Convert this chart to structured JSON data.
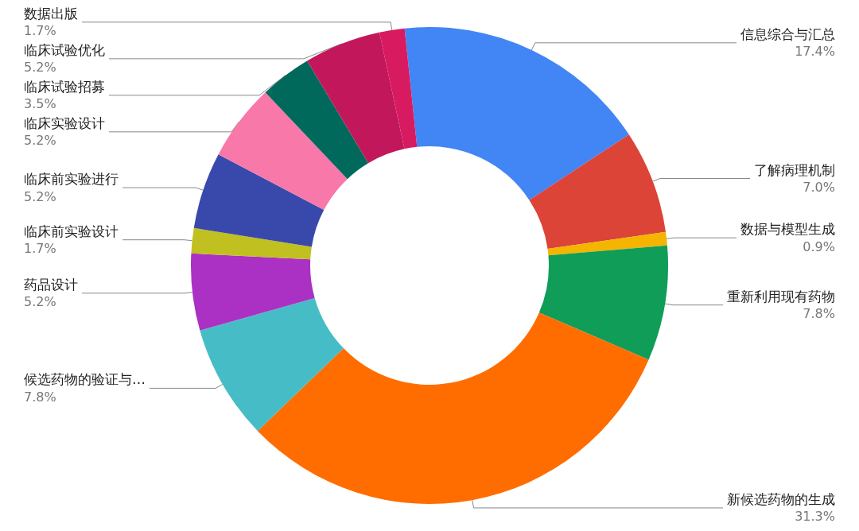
{
  "chart_data": {
    "type": "donut",
    "categories": [
      "信息综合与汇总",
      "了解病理机制",
      "数据与模型生成",
      "重新利用现有药物",
      "新候选药物的生成",
      "候选药物的验证与…",
      "药品设计",
      "临床前实验设计",
      "临床前实验进行",
      "临床实验设计",
      "临床试验招募",
      "临床试验优化",
      "数据出版"
    ],
    "values": [
      17.4,
      7.0,
      0.9,
      7.8,
      31.3,
      7.8,
      5.2,
      1.7,
      5.2,
      5.2,
      3.5,
      5.2,
      1.7
    ],
    "value_labels": [
      "17.4%",
      "7.0%",
      "0.9%",
      "7.8%",
      "31.3%",
      "7.8%",
      "5.2%",
      "1.7%",
      "5.2%",
      "5.2%",
      "3.5%",
      "5.2%",
      "1.7%"
    ],
    "colors": [
      "#4285f4",
      "#db4437",
      "#f4b400",
      "#0f9d58",
      "#ff6d00",
      "#46bdc6",
      "#ab30c4",
      "#c0c020",
      "#3949ab",
      "#f778a9",
      "#00695c",
      "#c2185b",
      "#d81b60"
    ],
    "legend": false
  }
}
